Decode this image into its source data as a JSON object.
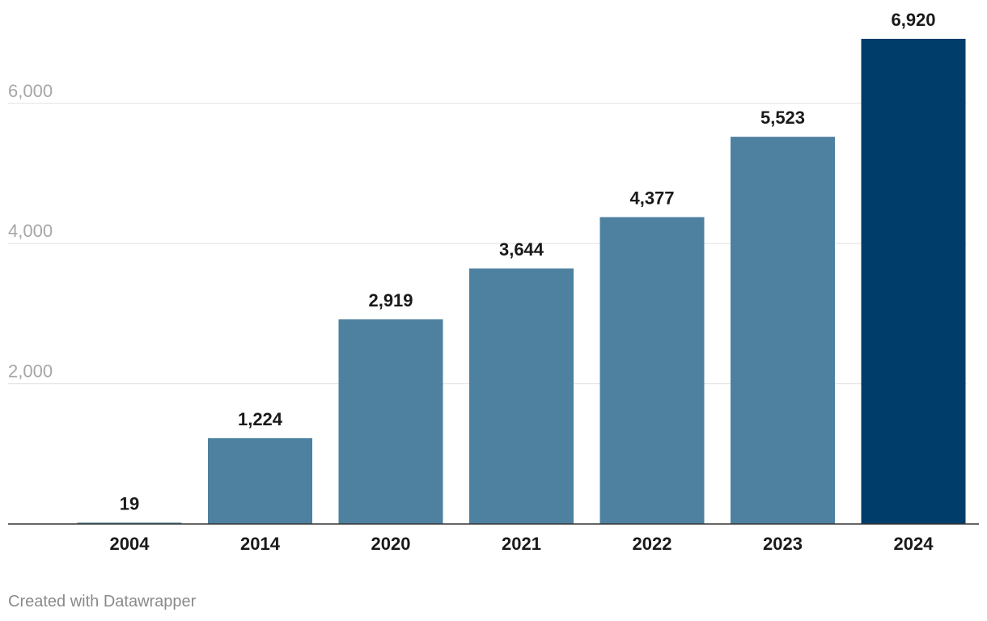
{
  "chart_data": {
    "type": "bar",
    "categories": [
      "2004",
      "2014",
      "2020",
      "2021",
      "2022",
      "2023",
      "2024"
    ],
    "values": [
      19,
      1224,
      2919,
      3644,
      4377,
      5523,
      6920
    ],
    "value_labels": [
      "19",
      "1,224",
      "2,919",
      "3,644",
      "4,377",
      "5,523",
      "6,920"
    ],
    "yticks": [
      2000,
      4000,
      6000
    ],
    "ytick_labels": [
      "2,000",
      "4,000",
      "6,000"
    ],
    "ylim": [
      0,
      6920
    ],
    "grid": true,
    "title": "",
    "xlabel": "",
    "ylabel": "",
    "colors": {
      "default_bar": "#4e81a0",
      "highlight_bar": "#003d6a",
      "highlight_category": "2024"
    }
  },
  "footer": {
    "credit": "Created with Datawrapper"
  }
}
